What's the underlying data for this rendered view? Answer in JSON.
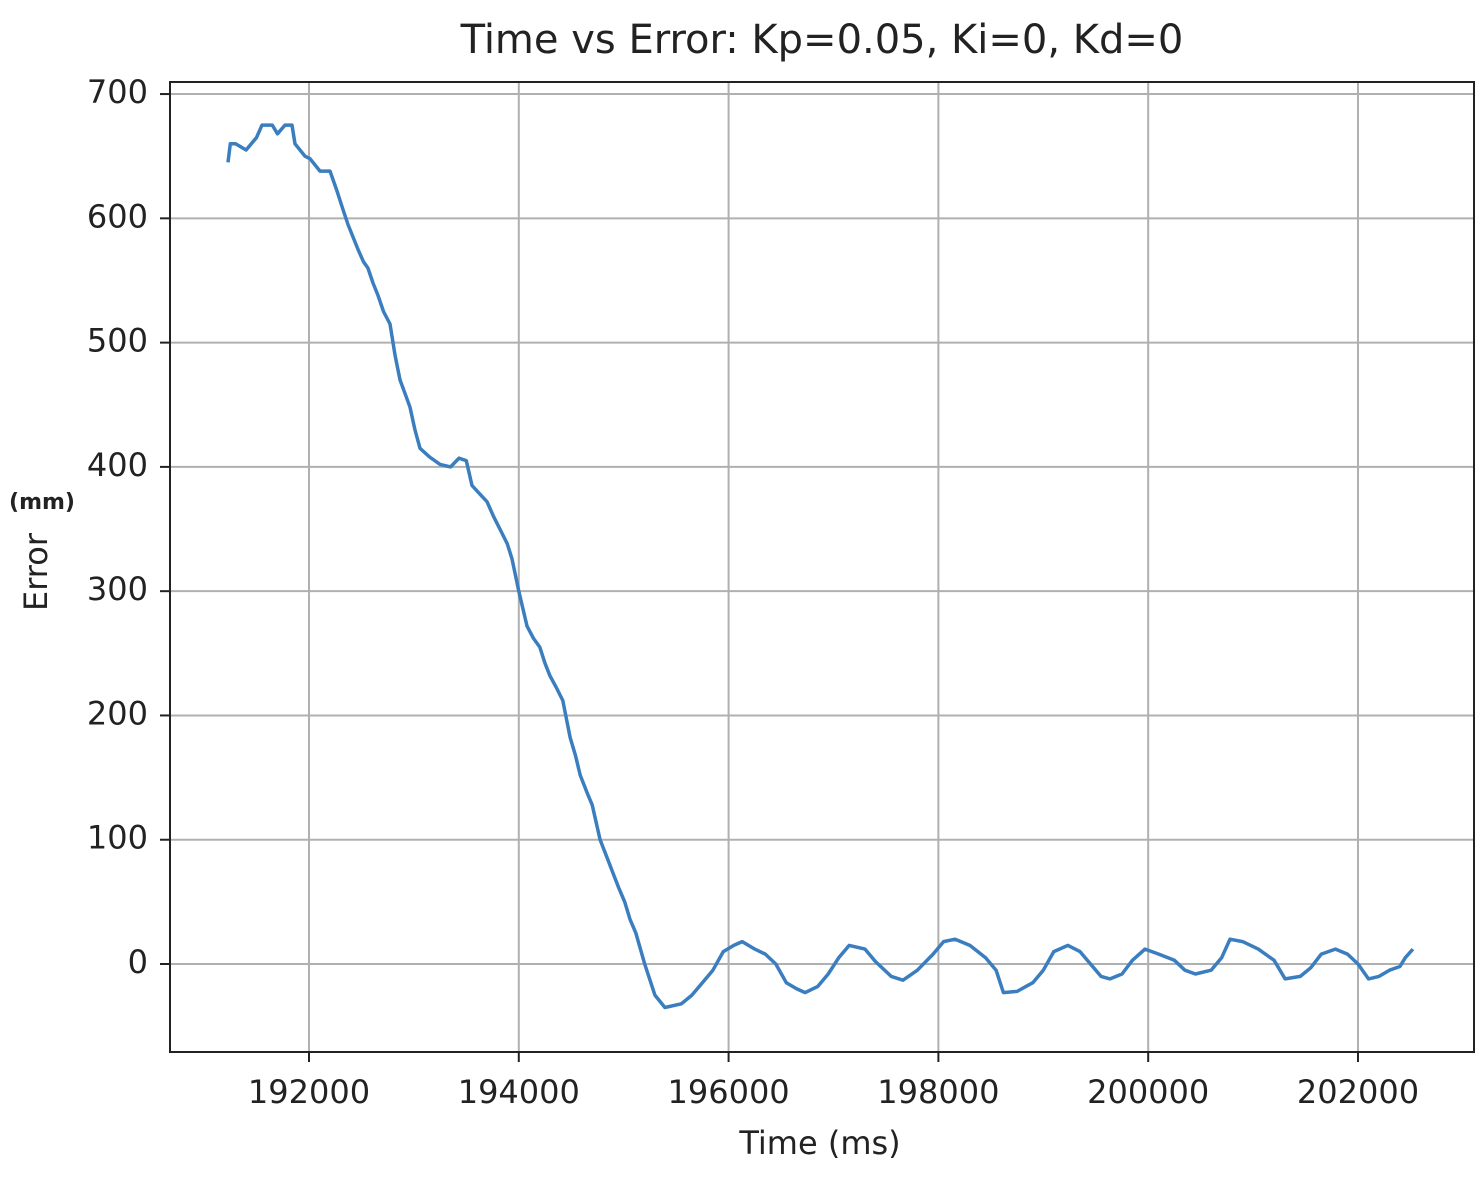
{
  "chart_data": {
    "type": "line",
    "title": "Time vs Error: Kp=0.05, Ki=0, Kd=0",
    "xlabel": "Time (ms)",
    "ylabel": "Error",
    "ylabel_unit": "(mm)",
    "x": [
      191228,
      191250,
      191300,
      191400,
      191450,
      191500,
      191552,
      191650,
      191700,
      191771,
      191838,
      191867,
      191962,
      192010,
      192105,
      192200,
      192267,
      192320,
      192372,
      192420,
      192467,
      192520,
      192562,
      192610,
      192658,
      192710,
      192772,
      192820,
      192868,
      192920,
      192963,
      193010,
      193058,
      193150,
      193250,
      193350,
      193430,
      193500,
      193554,
      193630,
      193697,
      193760,
      193820,
      193890,
      193935,
      194000,
      194078,
      194140,
      194200,
      194250,
      194297,
      194360,
      194420,
      194490,
      194540,
      194585,
      194650,
      194700,
      194775,
      194830,
      194890,
      194950,
      195010,
      195060,
      195115,
      195200,
      195298,
      195393,
      195550,
      195650,
      195750,
      195850,
      195950,
      196050,
      196130,
      196250,
      196350,
      196450,
      196550,
      196650,
      196730,
      196850,
      196950,
      197050,
      197150,
      197300,
      197400,
      197550,
      197663,
      197800,
      197950,
      198050,
      198159,
      198300,
      198450,
      198550,
      198620,
      198750,
      198900,
      199000,
      199100,
      199235,
      199350,
      199450,
      199550,
      199636,
      199750,
      199850,
      199970,
      200100,
      200250,
      200350,
      200450,
      200600,
      200700,
      200780,
      200900,
      201050,
      201200,
      201305,
      201450,
      201550,
      201650,
      201785,
      201900,
      202000,
      202100,
      202200,
      202300,
      202400,
      202450,
      202524
    ],
    "series": [
      {
        "name": "Error",
        "color": "#3a7ebf",
        "values": [
          645,
          660,
          660,
          655,
          660,
          665,
          675,
          675,
          668,
          675,
          675,
          660,
          650,
          648,
          638,
          638,
          622,
          608,
          595,
          585,
          575,
          565,
          560,
          548,
          538,
          525,
          515,
          490,
          470,
          458,
          448,
          430,
          415,
          408,
          402,
          400,
          407,
          405,
          385,
          378,
          372,
          360,
          350,
          338,
          326,
          300,
          272,
          262,
          255,
          242,
          232,
          222,
          212,
          182,
          168,
          152,
          138,
          128,
          100,
          88,
          75,
          62,
          50,
          36,
          25,
          0,
          -25,
          -35,
          -32,
          -25,
          -15,
          -5,
          10,
          15,
          18,
          12,
          8,
          0,
          -15,
          -20,
          -23,
          -18,
          -8,
          5,
          15,
          12,
          2,
          -10,
          -13,
          -5,
          8,
          18,
          20,
          15,
          5,
          -5,
          -23,
          -22,
          -15,
          -5,
          10,
          15,
          10,
          0,
          -10,
          -12,
          -8,
          3,
          12,
          8,
          3,
          -5,
          -8,
          -5,
          5,
          20,
          18,
          12,
          3,
          -12,
          -10,
          -3,
          8,
          12,
          8,
          0,
          -12,
          -10,
          -5,
          -2,
          5,
          12
        ]
      }
    ],
    "xlim": [
      190675,
      203106
    ],
    "ylim": [
      -70.8,
      709.7
    ],
    "xticks": [
      192000,
      194000,
      196000,
      198000,
      200000,
      202000
    ],
    "yticks": [
      0,
      100,
      200,
      300,
      400,
      500,
      600,
      700
    ],
    "grid": true
  }
}
